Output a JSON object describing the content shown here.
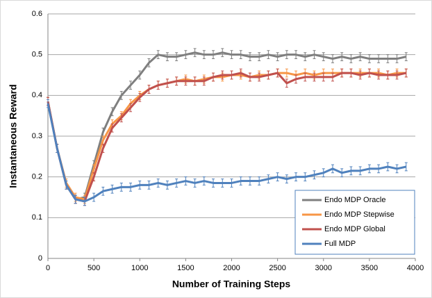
{
  "chart_data": {
    "type": "line",
    "x_label": "Number of Training Steps",
    "y_label": "Instantaneous Reward",
    "x": [
      0,
      100,
      200,
      300,
      400,
      500,
      600,
      700,
      800,
      900,
      1000,
      1100,
      1200,
      1300,
      1400,
      1500,
      1600,
      1700,
      1800,
      1900,
      2000,
      2100,
      2200,
      2300,
      2400,
      2500,
      2600,
      2700,
      2800,
      2900,
      3000,
      3100,
      3200,
      3300,
      3400,
      3500,
      3600,
      3700,
      3800,
      3900
    ],
    "series": [
      {
        "name": "Endo MDP Oracle",
        "color": "#7f7f7f",
        "error": 0.01,
        "values": [
          0.385,
          0.27,
          0.18,
          0.145,
          0.15,
          0.23,
          0.31,
          0.36,
          0.4,
          0.425,
          0.45,
          0.48,
          0.5,
          0.495,
          0.495,
          0.5,
          0.505,
          0.5,
          0.5,
          0.505,
          0.5,
          0.5,
          0.495,
          0.495,
          0.5,
          0.495,
          0.5,
          0.5,
          0.495,
          0.5,
          0.495,
          0.49,
          0.495,
          0.49,
          0.495,
          0.49,
          0.49,
          0.49,
          0.49,
          0.495
        ]
      },
      {
        "name": "Endo MDP Stepwise",
        "color": "#f79646",
        "error": 0.01,
        "values": [
          0.385,
          0.27,
          0.185,
          0.15,
          0.145,
          0.22,
          0.29,
          0.33,
          0.35,
          0.38,
          0.4,
          0.415,
          0.425,
          0.43,
          0.435,
          0.44,
          0.435,
          0.44,
          0.445,
          0.445,
          0.45,
          0.45,
          0.445,
          0.45,
          0.45,
          0.455,
          0.455,
          0.45,
          0.455,
          0.45,
          0.455,
          0.455,
          0.455,
          0.455,
          0.455,
          0.455,
          0.455,
          0.45,
          0.455,
          0.455
        ]
      },
      {
        "name": "Endo MDP Global",
        "color": "#c0504d",
        "error": 0.01,
        "values": [
          0.385,
          0.27,
          0.18,
          0.145,
          0.14,
          0.2,
          0.27,
          0.32,
          0.345,
          0.37,
          0.395,
          0.415,
          0.425,
          0.43,
          0.435,
          0.435,
          0.435,
          0.435,
          0.445,
          0.45,
          0.45,
          0.455,
          0.445,
          0.445,
          0.45,
          0.455,
          0.43,
          0.44,
          0.445,
          0.445,
          0.445,
          0.445,
          0.455,
          0.455,
          0.45,
          0.455,
          0.45,
          0.45,
          0.45,
          0.455
        ]
      },
      {
        "name": "Full MDP",
        "color": "#4f81bd",
        "error": 0.01,
        "values": [
          0.38,
          0.27,
          0.18,
          0.145,
          0.14,
          0.15,
          0.165,
          0.17,
          0.175,
          0.175,
          0.18,
          0.18,
          0.185,
          0.18,
          0.185,
          0.19,
          0.185,
          0.19,
          0.185,
          0.185,
          0.185,
          0.19,
          0.19,
          0.19,
          0.195,
          0.2,
          0.195,
          0.2,
          0.2,
          0.205,
          0.21,
          0.22,
          0.21,
          0.215,
          0.215,
          0.22,
          0.22,
          0.225,
          0.22,
          0.225
        ]
      }
    ],
    "xlim": [
      0,
      4000
    ],
    "xticks": [
      0,
      500,
      1000,
      1500,
      2000,
      2500,
      3000,
      3500,
      4000
    ],
    "ylim": [
      0,
      0.6
    ],
    "yticks": [
      0,
      0.1,
      0.2,
      0.3,
      0.4,
      0.5,
      0.6
    ],
    "grid": true,
    "legend": "lower right"
  }
}
